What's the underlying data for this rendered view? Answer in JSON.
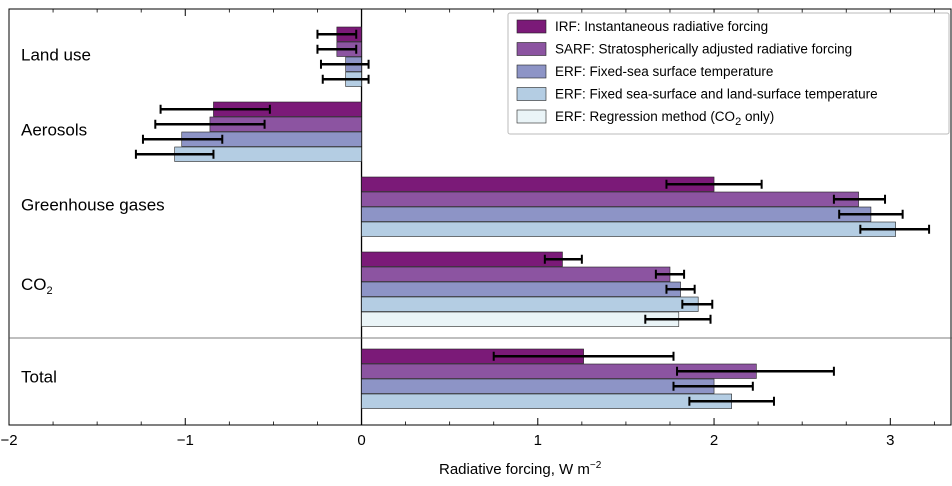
{
  "chart_data": {
    "type": "bar",
    "orientation": "horizontal",
    "xlabel": "Radiative forcing, W m",
    "xlabel_superscript": "−2",
    "xlim": [
      -2,
      3.35
    ],
    "xticks": [
      -2,
      -1,
      0,
      1,
      2,
      3
    ],
    "xtick_labels": [
      "−2",
      "−1",
      "0",
      "1",
      "2",
      "3"
    ],
    "legend_position": "top-right",
    "series": [
      {
        "name": "IRF: Instantaneous radiative forcing",
        "color": "#7b1a78"
      },
      {
        "name": "SARF: Stratospherically adjusted radiative forcing",
        "color": "#8c54a1"
      },
      {
        "name": "ERF: Fixed-sea surface temperature",
        "color": "#8d94c6"
      },
      {
        "name": "ERF: Fixed sea-surface and land-surface temperature",
        "color": "#b4cde3"
      },
      {
        "name_prefix": "ERF: Regression method (CO",
        "name_sub": "2",
        "name_suffix": " only)",
        "color": "#eaf4f7"
      }
    ],
    "groups": [
      {
        "label": "Land use",
        "values": [
          -0.14,
          -0.14,
          -0.09,
          -0.09,
          null
        ],
        "errors": [
          [
            -0.25,
            -0.03
          ],
          [
            -0.25,
            -0.03
          ],
          [
            -0.23,
            0.04
          ],
          [
            -0.22,
            0.04
          ],
          null
        ]
      },
      {
        "label": "Aerosols",
        "values": [
          -0.84,
          -0.86,
          -1.02,
          -1.06,
          null
        ],
        "errors": [
          [
            -1.14,
            -0.52
          ],
          [
            -1.17,
            -0.55
          ],
          [
            -1.24,
            -0.79
          ],
          [
            -1.28,
            -0.84
          ],
          null
        ]
      },
      {
        "label": "Greenhouse gases",
        "values": [
          2.0,
          2.82,
          2.89,
          3.03,
          null
        ],
        "errors": [
          [
            1.73,
            2.27
          ],
          [
            2.68,
            2.97
          ],
          [
            2.71,
            3.07
          ],
          [
            2.83,
            3.22
          ],
          null
        ]
      },
      {
        "label_prefix": "CO",
        "label_sub": "2",
        "values": [
          1.14,
          1.75,
          1.81,
          1.91,
          1.8
        ],
        "errors": [
          [
            1.04,
            1.25
          ],
          [
            1.67,
            1.83
          ],
          [
            1.73,
            1.89
          ],
          [
            1.82,
            1.99
          ],
          [
            1.61,
            1.98
          ]
        ]
      },
      {
        "label": "Total",
        "values": [
          1.26,
          2.24,
          2.0,
          2.1,
          null
        ],
        "errors": [
          [
            0.75,
            1.77
          ],
          [
            1.79,
            2.68
          ],
          [
            1.77,
            2.22
          ],
          [
            1.86,
            2.34
          ],
          null
        ]
      }
    ]
  }
}
